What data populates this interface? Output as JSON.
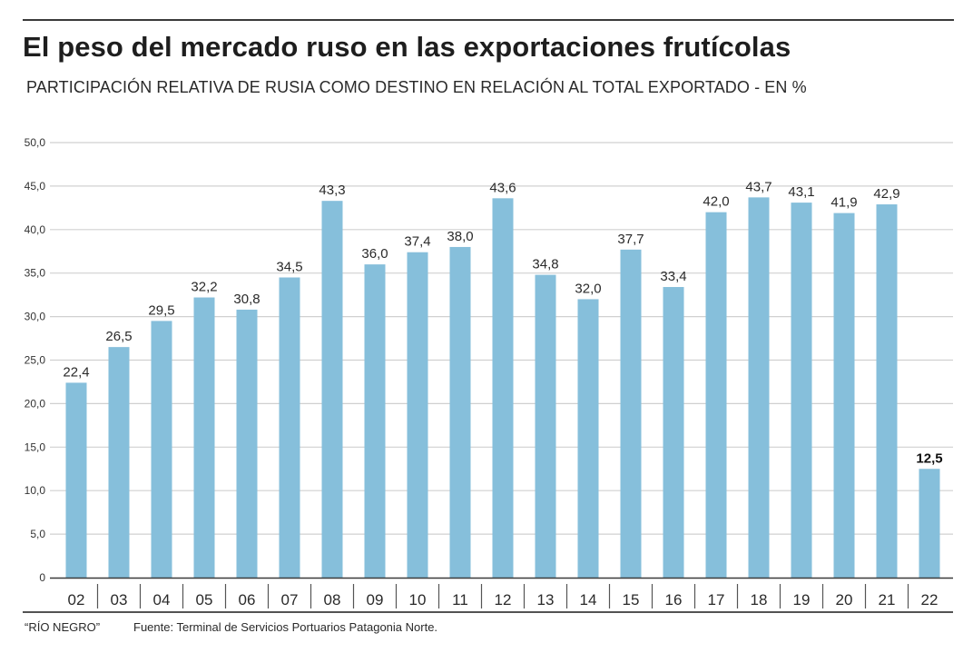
{
  "header": {
    "title": "El peso del mercado ruso en las exportaciones frutícolas",
    "subtitle": "PARTICIPACIÓN RELATIVA DE RUSIA COMO DESTINO EN RELACIÓN AL TOTAL EXPORTADO - EN %"
  },
  "footer": {
    "credit": "“RÍO NEGRO”",
    "source": "Fuente: Terminal de Servicios Portuarios Patagonia Norte."
  },
  "colors": {
    "bar": "#86bfdb",
    "grid": "#d0d0d0",
    "axis": "#3a3a3a"
  },
  "chart_data": {
    "type": "bar",
    "title": "El peso del mercado ruso en las exportaciones frutícolas",
    "subtitle": "PARTICIPACIÓN RELATIVA DE RUSIA COMO DESTINO EN RELACIÓN AL TOTAL EXPORTADO - EN %",
    "xlabel": "",
    "ylabel": "",
    "categories": [
      "02",
      "03",
      "04",
      "05",
      "06",
      "07",
      "08",
      "09",
      "10",
      "11",
      "12",
      "13",
      "14",
      "15",
      "16",
      "17",
      "18",
      "19",
      "20",
      "21",
      "22"
    ],
    "values": [
      22.4,
      26.5,
      29.5,
      32.2,
      30.8,
      34.5,
      43.3,
      36.0,
      37.4,
      38.0,
      43.6,
      34.8,
      32.0,
      37.7,
      33.4,
      42.0,
      43.7,
      43.1,
      41.9,
      42.9,
      12.5
    ],
    "value_labels": [
      "22,4",
      "26,5",
      "29,5",
      "32,2",
      "30,8",
      "34,5",
      "43,3",
      "36,0",
      "37,4",
      "38,0",
      "43,6",
      "34,8",
      "32,0",
      "37,7",
      "33,4",
      "42,0",
      "43,7",
      "43,1",
      "41,9",
      "42,9",
      "12,5"
    ],
    "highlighted_index": 20,
    "ylim": [
      0,
      50
    ],
    "yticks": [
      0,
      5,
      10,
      15,
      20,
      25,
      30,
      35,
      40,
      45,
      50
    ],
    "ytick_labels": [
      "0",
      "5,0",
      "10,0",
      "15,0",
      "20,0",
      "25,0",
      "30,0",
      "35,0",
      "40,0",
      "45,0",
      "50,0"
    ],
    "grid": true,
    "legend": "none"
  }
}
